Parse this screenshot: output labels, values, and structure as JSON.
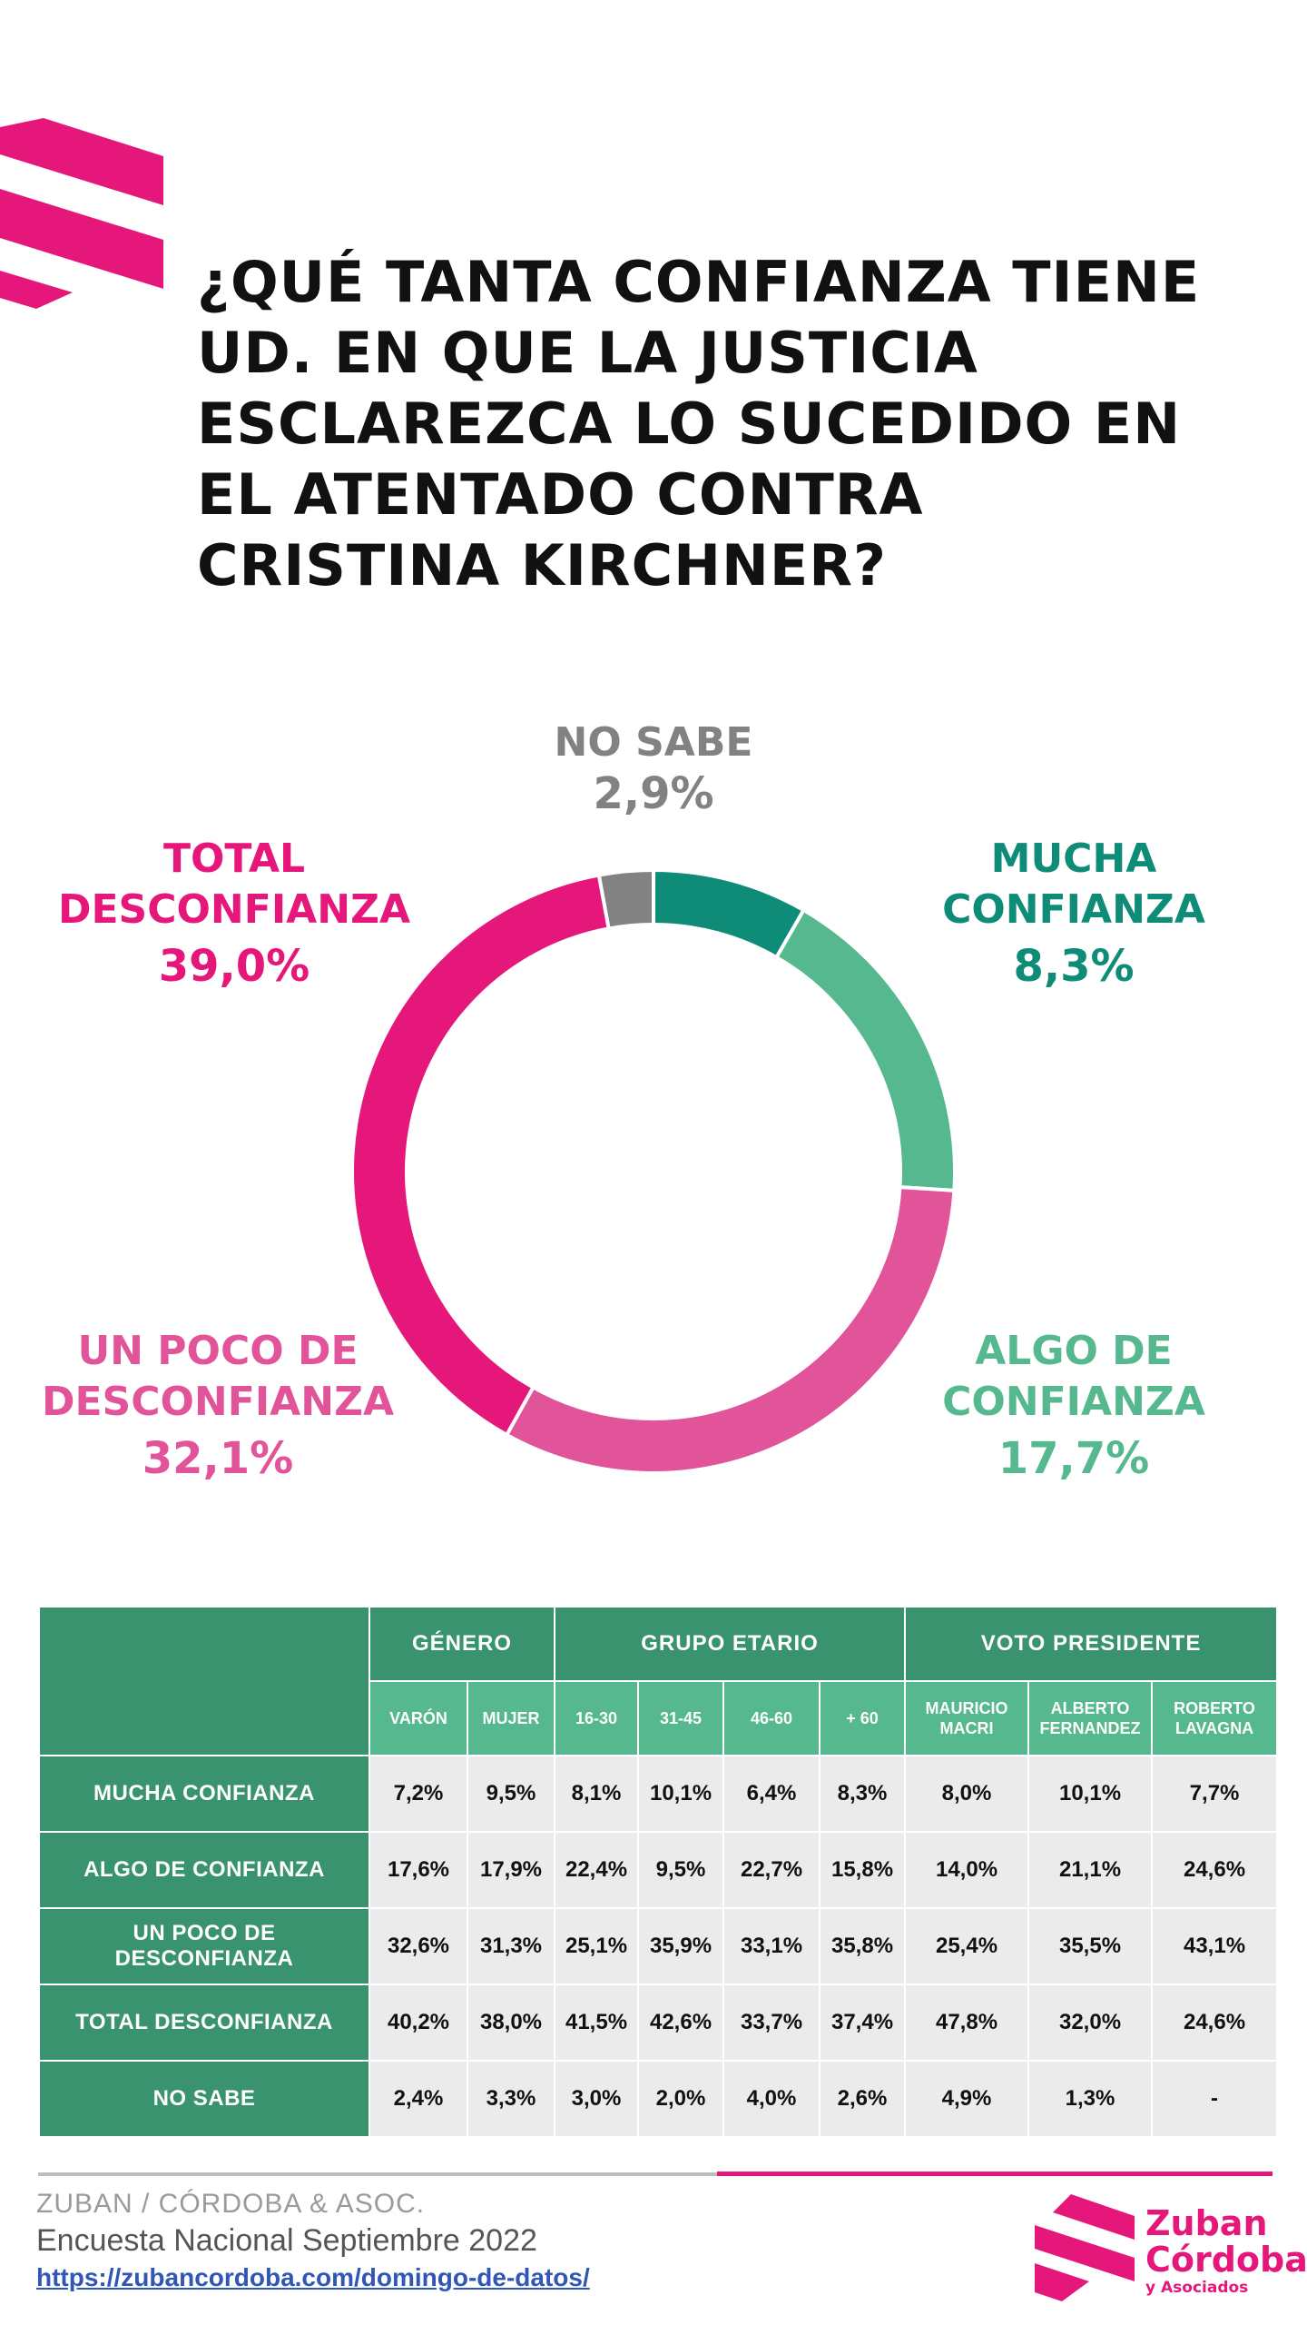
{
  "colors": {
    "mucha": "#0f8c78",
    "algo": "#55b88e",
    "un_poco": "#e2549a",
    "total": "#e6177a",
    "no_sabe": "#828282",
    "table_dark": "#3a936f",
    "table_light": "#55b88e",
    "brand": "#e6177a"
  },
  "title": "¿QUÉ TANTA CONFIANZA TIENE UD. EN QUE LA JUSTICIA ESCLAREZCA LO SUCEDIDO EN EL ATENTADO CONTRA CRISTINA KIRCHNER?",
  "chart_data": {
    "type": "pie",
    "title": "¿QUÉ TANTA CONFIANZA TIENE UD. EN QUE LA JUSTICIA ESCLAREZCA LO SUCEDIDO EN EL ATENTADO CONTRA CRISTINA KIRCHNER?",
    "slices": [
      {
        "label": "MUCHA\nCONFIANZA",
        "pct": "8,3%",
        "value": 8.3,
        "color": "#0f8c78"
      },
      {
        "label": "ALGO DE\nCONFIANZA",
        "pct": "17,7%",
        "value": 17.7,
        "color": "#55b88e"
      },
      {
        "label": "UN POCO DE\nDESCONFIANZA",
        "pct": "32,1%",
        "value": 32.1,
        "color": "#e2549a"
      },
      {
        "label": "TOTAL\nDESCONFIANZA",
        "pct": "39,0%",
        "value": 39.0,
        "color": "#e6177a"
      },
      {
        "label": "NO SABE",
        "pct": "2,9%",
        "value": 2.9,
        "color": "#828282"
      }
    ]
  },
  "table": {
    "groups": [
      "GÉNERO",
      "GRUPO ETARIO",
      "VOTO PRESIDENTE"
    ],
    "columns": [
      "VARÓN",
      "MUJER",
      "16-30",
      "31-45",
      "46-60",
      "+ 60",
      "MAURICIO MACRI",
      "ALBERTO FERNANDEZ",
      "ROBERTO LAVAGNA"
    ],
    "rows": [
      {
        "label": "MUCHA CONFIANZA",
        "values": [
          "7,2%",
          "9,5%",
          "8,1%",
          "10,1%",
          "6,4%",
          "8,3%",
          "8,0%",
          "10,1%",
          "7,7%"
        ]
      },
      {
        "label": "ALGO DE CONFIANZA",
        "values": [
          "17,6%",
          "17,9%",
          "22,4%",
          "9,5%",
          "22,7%",
          "15,8%",
          "14,0%",
          "21,1%",
          "24,6%"
        ]
      },
      {
        "label": "UN POCO DE DESCONFIANZA",
        "values": [
          "32,6%",
          "31,3%",
          "25,1%",
          "35,9%",
          "33,1%",
          "35,8%",
          "25,4%",
          "35,5%",
          "43,1%"
        ]
      },
      {
        "label": "TOTAL DESCONFIANZA",
        "values": [
          "40,2%",
          "38,0%",
          "41,5%",
          "42,6%",
          "33,7%",
          "37,4%",
          "47,8%",
          "32,0%",
          "24,6%"
        ]
      },
      {
        "label": "NO SABE",
        "values": [
          "2,4%",
          "3,3%",
          "3,0%",
          "2,0%",
          "4,0%",
          "2,6%",
          "4,9%",
          "1,3%",
          "-"
        ]
      }
    ]
  },
  "footer": {
    "org": "ZUBAN / CÓRDOBA & ASOC.",
    "survey": "Encuesta Nacional Septiembre 2022",
    "link": "https://zubancordoba.com/domingo-de-datos/"
  },
  "logo": {
    "line1": "Zuban",
    "line2": "Córdoba",
    "line3": "y Asociados"
  }
}
